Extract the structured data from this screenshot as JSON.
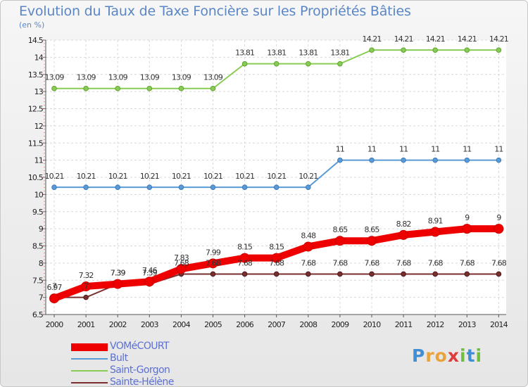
{
  "title": "Evolution du Taux de Taxe Foncière sur les Propriétés Bâties",
  "subtitle": "(en %)",
  "logo": "Proxiti",
  "chart_data": {
    "type": "line",
    "title": "Evolution du Taux de Taxe Foncière sur les Propriétés Bâties",
    "ylabel": "(en %)",
    "xlabel": "",
    "x": [
      "2000",
      "2001",
      "2002",
      "2003",
      "2004",
      "2005",
      "2006",
      "2007",
      "2008",
      "2009",
      "2010",
      "2011",
      "2012",
      "2013",
      "2014"
    ],
    "ylim": [
      6.5,
      14.5
    ],
    "yticks": [
      "6.5",
      "7",
      "7.5",
      "8",
      "8.5",
      "9",
      "9.5",
      "10",
      "10.5",
      "11",
      "11.5",
      "12",
      "12.5",
      "13",
      "13.5",
      "14",
      "14.5"
    ],
    "grid": true,
    "legend_position": "bottom-left",
    "series": [
      {
        "name": "VOMéCOURT",
        "color": "#ee0000",
        "values": [
          6.97,
          7.32,
          7.39,
          7.46,
          7.83,
          7.99,
          8.15,
          8.15,
          8.48,
          8.65,
          8.65,
          8.82,
          8.91,
          9,
          9
        ],
        "labels": [
          "6.97",
          "7.32",
          "7.39",
          "7.46",
          "7.83",
          "7.99",
          "8.15",
          "8.15",
          "8.48",
          "8.65",
          "8.65",
          "8.82",
          "8.91",
          "9",
          "9"
        ]
      },
      {
        "name": "Bult",
        "color": "#5b9bd5",
        "values": [
          10.21,
          10.21,
          10.21,
          10.21,
          10.21,
          10.21,
          10.21,
          10.21,
          10.21,
          11,
          11,
          11,
          11,
          11,
          11
        ],
        "labels": [
          "10.21",
          "10.21",
          "10.21",
          "10.21",
          "10.21",
          "10.21",
          "10.21",
          "10.21",
          "10.21",
          "11",
          "11",
          "11",
          "11",
          "11",
          "11"
        ]
      },
      {
        "name": "Saint-Gorgon",
        "color": "#88cc55",
        "values": [
          13.09,
          13.09,
          13.09,
          13.09,
          13.09,
          13.09,
          13.81,
          13.81,
          13.81,
          13.81,
          14.21,
          14.21,
          14.21,
          14.21,
          14.21
        ],
        "labels": [
          "13.09",
          "13.09",
          "13.09",
          "13.09",
          "13.09",
          "13.09",
          "13.81",
          "13.81",
          "13.81",
          "13.81",
          "14.21",
          "14.21",
          "14.21",
          "14.21",
          "14.21"
        ]
      },
      {
        "name": "Sainte-Hélène",
        "color": "#7a2e2e",
        "values": [
          7,
          7,
          7.39,
          7.39,
          7.68,
          7.68,
          7.68,
          7.68,
          7.68,
          7.68,
          7.68,
          7.68,
          7.68,
          7.68,
          7.68
        ],
        "labels": [
          "7",
          "7",
          "7.39",
          "7.39",
          "7.68",
          "7.68",
          "7.68",
          "7.68",
          "7.68",
          "7.68",
          "7.68",
          "7.68",
          "7.68",
          "7.68",
          "7.68"
        ]
      }
    ]
  }
}
